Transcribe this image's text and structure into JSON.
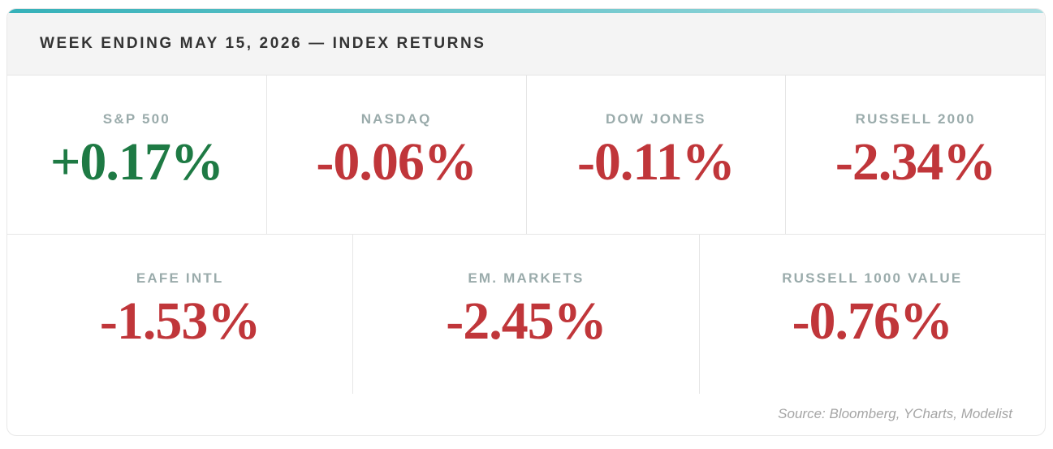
{
  "header": {
    "title": "WEEK ENDING MAY 15, 2026 — INDEX RETURNS"
  },
  "colors": {
    "positive": "#1e7a44",
    "negative": "#c0363a"
  },
  "rows": [
    [
      {
        "label": "S&P 500",
        "value": "+0.17%"
      },
      {
        "label": "NASDAQ",
        "value": "-0.06%"
      },
      {
        "label": "DOW JONES",
        "value": "-0.11%"
      },
      {
        "label": "RUSSELL 2000",
        "value": "-2.34%"
      }
    ],
    [
      {
        "label": "EAFE INTL",
        "value": "-1.53%"
      },
      {
        "label": "EM. MARKETS",
        "value": "-2.45%"
      },
      {
        "label": "RUSSELL 1000 VALUE",
        "value": "-0.76%"
      }
    ]
  ],
  "footer": {
    "source": "Source: Bloomberg, YCharts, Modelist"
  }
}
